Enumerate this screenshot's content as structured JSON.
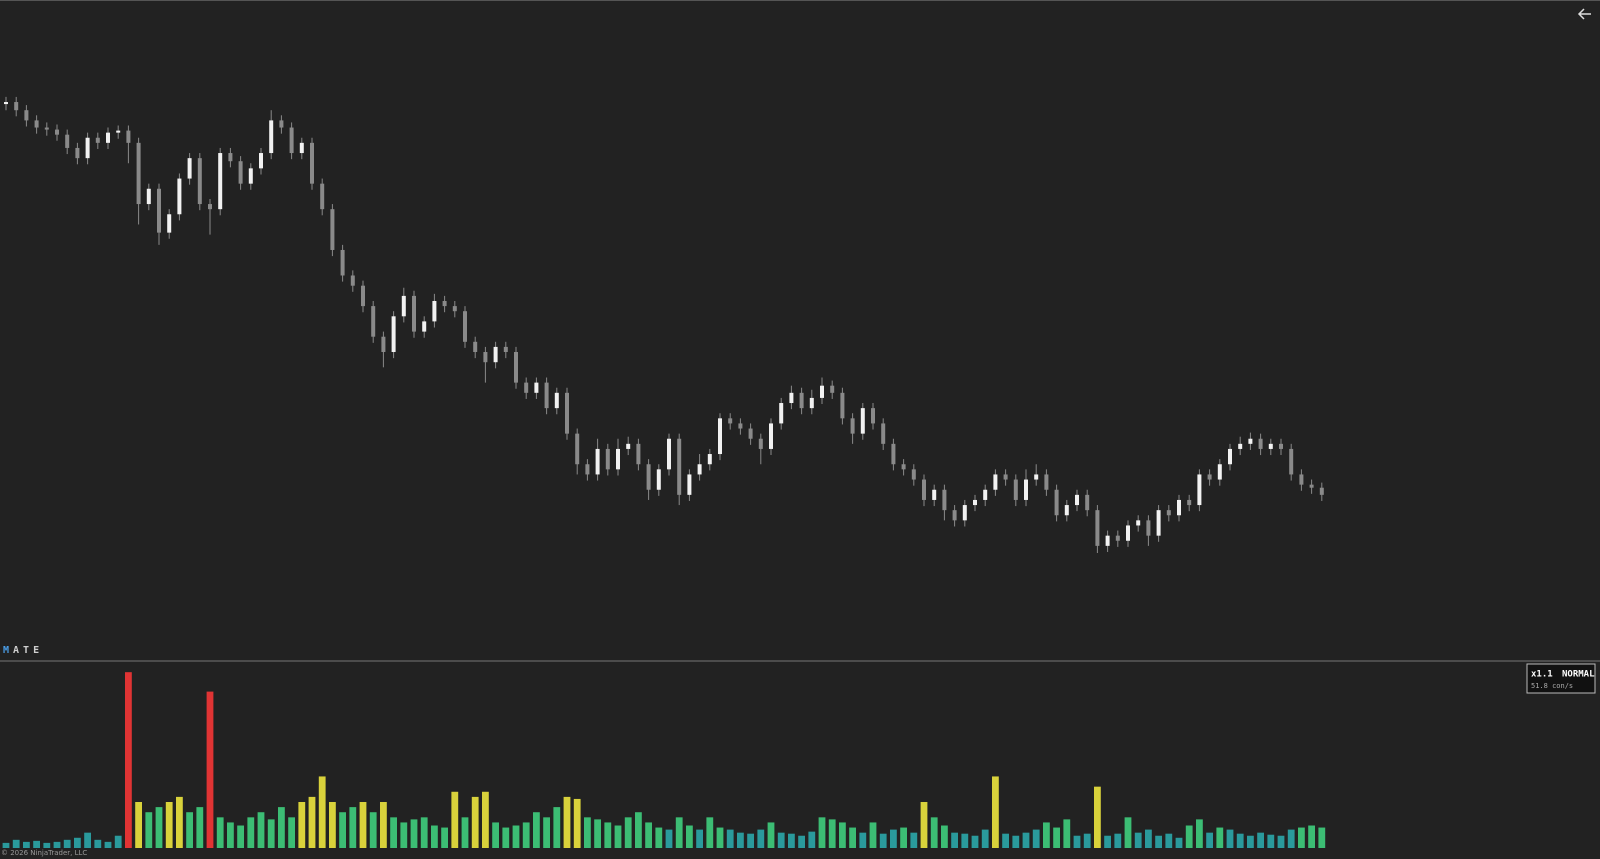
{
  "chart_data": [
    {
      "type": "candlestick",
      "ylim": [
        0,
        640
      ],
      "up_color": "#f2f2f2",
      "down_color": "#8a8a8a",
      "open": [
        538,
        540,
        532,
        522,
        515,
        513,
        508,
        495,
        485,
        505,
        500,
        510,
        512,
        500,
        440,
        455,
        412,
        430,
        465,
        485,
        440,
        435,
        490,
        482,
        460,
        475,
        490,
        522,
        515,
        490,
        500,
        460,
        435,
        395,
        370,
        360,
        340,
        310,
        295,
        330,
        350,
        315,
        325,
        345,
        340,
        335,
        305,
        295,
        285,
        300,
        295,
        265,
        255,
        265,
        240,
        255,
        215,
        185,
        175,
        200,
        180,
        200,
        205,
        185,
        160,
        180,
        210,
        155,
        175,
        185,
        195,
        230,
        225,
        220,
        210,
        200,
        225,
        245,
        255,
        240,
        250,
        262,
        255,
        230,
        215,
        240,
        225,
        205,
        185,
        180,
        170,
        150,
        160,
        140,
        130,
        145,
        150,
        160,
        175,
        170,
        150,
        170,
        175,
        160,
        135,
        145,
        155,
        140,
        105,
        115,
        110,
        125,
        130,
        115,
        140,
        135,
        150,
        145,
        175,
        170,
        185,
        200,
        205,
        210,
        200,
        205,
        200,
        175,
        165,
        162
      ],
      "high": [
        545,
        545,
        537,
        527,
        520,
        518,
        513,
        500,
        510,
        510,
        515,
        517,
        517,
        505,
        460,
        460,
        435,
        470,
        490,
        490,
        445,
        495,
        495,
        487,
        480,
        495,
        532,
        527,
        520,
        505,
        505,
        465,
        440,
        400,
        375,
        365,
        345,
        315,
        335,
        358,
        355,
        330,
        352,
        350,
        345,
        340,
        310,
        300,
        305,
        305,
        300,
        270,
        270,
        270,
        260,
        260,
        220,
        190,
        210,
        205,
        210,
        212,
        210,
        190,
        185,
        215,
        215,
        180,
        195,
        200,
        235,
        235,
        230,
        225,
        215,
        230,
        250,
        262,
        260,
        258,
        270,
        267,
        260,
        235,
        245,
        245,
        230,
        210,
        190,
        185,
        175,
        165,
        165,
        145,
        150,
        155,
        165,
        180,
        180,
        175,
        180,
        185,
        180,
        165,
        150,
        160,
        160,
        145,
        120,
        120,
        130,
        135,
        135,
        145,
        145,
        155,
        155,
        180,
        180,
        190,
        205,
        212,
        216,
        215,
        210,
        210,
        205,
        180,
        170,
        167
      ],
      "low": [
        532,
        526,
        516,
        509,
        507,
        502,
        489,
        479,
        479,
        494,
        494,
        504,
        480,
        420,
        434,
        400,
        406,
        424,
        459,
        434,
        410,
        429,
        476,
        454,
        454,
        469,
        484,
        509,
        484,
        484,
        454,
        429,
        389,
        364,
        354,
        334,
        304,
        280,
        289,
        324,
        309,
        309,
        319,
        334,
        329,
        299,
        289,
        265,
        279,
        289,
        259,
        249,
        249,
        234,
        234,
        209,
        175,
        169,
        169,
        174,
        174,
        194,
        179,
        150,
        154,
        174,
        145,
        149,
        169,
        179,
        189,
        219,
        214,
        204,
        185,
        194,
        219,
        239,
        234,
        234,
        244,
        249,
        224,
        205,
        209,
        219,
        199,
        179,
        174,
        164,
        144,
        144,
        130,
        124,
        124,
        139,
        144,
        154,
        164,
        144,
        144,
        164,
        154,
        129,
        129,
        139,
        134,
        98,
        99,
        104,
        104,
        119,
        105,
        109,
        129,
        129,
        139,
        139,
        164,
        164,
        179,
        194,
        199,
        194,
        194,
        194,
        169,
        159,
        156,
        149
      ],
      "close": [
        540,
        532,
        522,
        515,
        513,
        508,
        495,
        485,
        505,
        500,
        510,
        512,
        500,
        440,
        455,
        412,
        430,
        465,
        485,
        440,
        435,
        490,
        482,
        460,
        475,
        490,
        522,
        515,
        490,
        500,
        460,
        435,
        395,
        370,
        360,
        340,
        310,
        295,
        330,
        350,
        315,
        325,
        345,
        340,
        335,
        305,
        295,
        285,
        300,
        295,
        265,
        255,
        265,
        240,
        255,
        215,
        185,
        175,
        200,
        180,
        200,
        205,
        185,
        160,
        180,
        210,
        155,
        175,
        185,
        195,
        230,
        225,
        220,
        210,
        200,
        225,
        245,
        255,
        240,
        250,
        262,
        255,
        230,
        215,
        240,
        225,
        205,
        185,
        180,
        170,
        150,
        160,
        140,
        130,
        145,
        150,
        160,
        175,
        170,
        150,
        170,
        175,
        160,
        135,
        145,
        155,
        140,
        105,
        115,
        110,
        125,
        130,
        115,
        140,
        135,
        150,
        145,
        175,
        170,
        185,
        200,
        205,
        210,
        200,
        205,
        200,
        175,
        165,
        162,
        155
      ]
    },
    {
      "type": "bar",
      "ylim": [
        0,
        180
      ],
      "palette": [
        "#2d5f9a",
        "#2a9a9c",
        "#3cbd74",
        "#d9d23b",
        "#e89a2a",
        "#e03434"
      ],
      "values": [
        5,
        8,
        6,
        7,
        5,
        6,
        8,
        10,
        15,
        8,
        6,
        12,
        172,
        45,
        35,
        40,
        45,
        50,
        35,
        40,
        153,
        30,
        25,
        22,
        30,
        35,
        28,
        40,
        30,
        45,
        50,
        70,
        45,
        35,
        40,
        45,
        35,
        45,
        30,
        25,
        28,
        30,
        22,
        20,
        55,
        30,
        50,
        55,
        25,
        20,
        22,
        25,
        35,
        30,
        40,
        50,
        48,
        30,
        28,
        25,
        22,
        30,
        35,
        25,
        20,
        18,
        30,
        22,
        18,
        30,
        20,
        18,
        15,
        14,
        18,
        25,
        15,
        14,
        12,
        16,
        30,
        28,
        25,
        20,
        15,
        25,
        14,
        18,
        20,
        15,
        45,
        30,
        22,
        15,
        14,
        12,
        18,
        70,
        14,
        12,
        15,
        18,
        25,
        20,
        28,
        12,
        14,
        60,
        12,
        14,
        30,
        15,
        18,
        12,
        14,
        10,
        22,
        28,
        15,
        20,
        18,
        14,
        12,
        15,
        13,
        12,
        18,
        20,
        22,
        20
      ]
    }
  ],
  "indicator_label_initial": "M",
  "indicator_label_rest": "ATE",
  "speed_badge": {
    "multiplier": "x1.1",
    "mode": "NORMAL",
    "rate": "51.8 con/s"
  },
  "copyright": "© 2026 NinjaTrader, LLC"
}
